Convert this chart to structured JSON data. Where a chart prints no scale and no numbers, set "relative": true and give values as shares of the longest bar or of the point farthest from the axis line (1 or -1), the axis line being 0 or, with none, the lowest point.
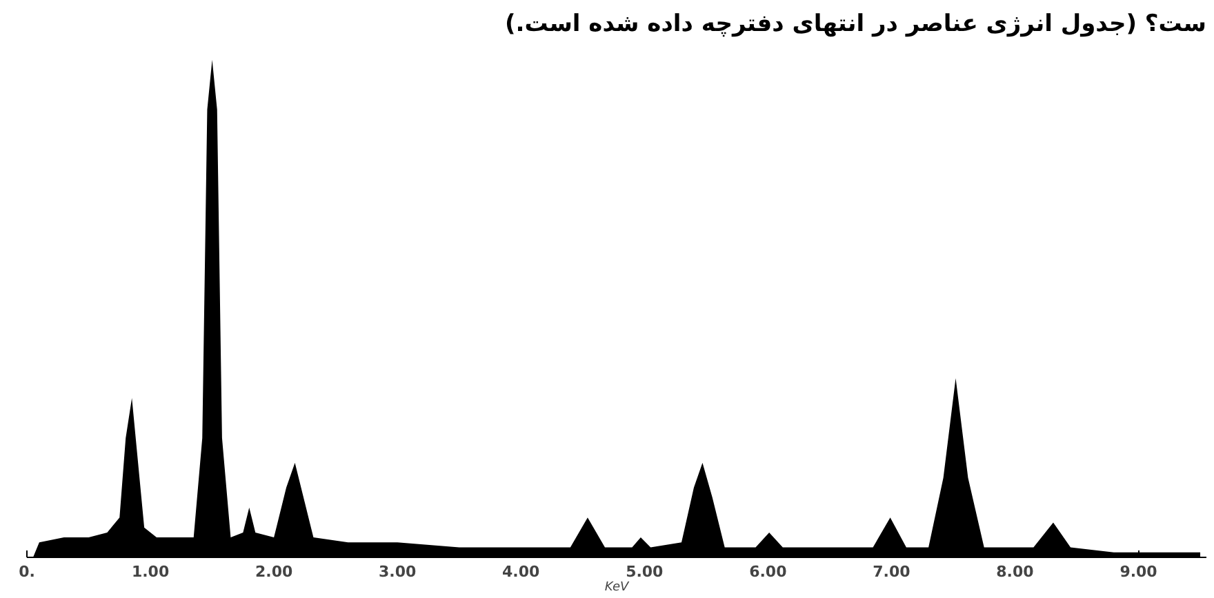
{
  "chart_data": {
    "type": "area",
    "relative": true,
    "title": "ست؟ (جدول انرژی عناصر در انتهای دفترچه داده شده است.)",
    "xlabel": "KeV",
    "color": "#000000",
    "x": [
      0.05,
      0.1,
      0.3,
      0.5,
      0.65,
      0.75,
      0.8,
      0.85,
      0.9,
      0.95,
      1.05,
      1.2,
      1.35,
      1.42,
      1.46,
      1.5,
      1.54,
      1.58,
      1.65,
      1.75,
      1.8,
      1.85,
      2.0,
      2.1,
      2.17,
      2.25,
      2.32,
      2.6,
      3.0,
      3.5,
      4.0,
      4.4,
      4.54,
      4.68,
      4.9,
      4.97,
      5.05,
      5.3,
      5.4,
      5.47,
      5.55,
      5.65,
      5.9,
      6.01,
      6.12,
      6.5,
      6.85,
      6.99,
      7.12,
      7.3,
      7.42,
      7.52,
      7.62,
      7.75,
      8.15,
      8.31,
      8.45,
      8.8,
      9.2,
      9.5
    ],
    "values": [
      0.0,
      0.03,
      0.04,
      0.04,
      0.05,
      0.08,
      0.24,
      0.32,
      0.19,
      0.06,
      0.04,
      0.04,
      0.04,
      0.24,
      0.9,
      1.0,
      0.9,
      0.24,
      0.04,
      0.05,
      0.1,
      0.05,
      0.04,
      0.14,
      0.19,
      0.11,
      0.04,
      0.03,
      0.03,
      0.02,
      0.02,
      0.02,
      0.08,
      0.02,
      0.02,
      0.04,
      0.02,
      0.03,
      0.14,
      0.19,
      0.12,
      0.02,
      0.02,
      0.05,
      0.02,
      0.02,
      0.02,
      0.08,
      0.02,
      0.02,
      0.16,
      0.36,
      0.16,
      0.02,
      0.02,
      0.07,
      0.02,
      0.01,
      0.01,
      0.01
    ],
    "xlim": [
      0,
      9.55
    ],
    "xticks": [
      {
        "value": 0,
        "label": "0."
      },
      {
        "value": 1,
        "label": "1.00"
      },
      {
        "value": 2,
        "label": "2.00"
      },
      {
        "value": 3,
        "label": "3.00"
      },
      {
        "value": 4,
        "label": "4.00"
      },
      {
        "value": 5,
        "label": "5.00"
      },
      {
        "value": 6,
        "label": "6.00"
      },
      {
        "value": 7,
        "label": "7.00"
      },
      {
        "value": 8,
        "label": "8.00"
      },
      {
        "value": 9,
        "label": "9.00"
      }
    ],
    "grid": false
  }
}
